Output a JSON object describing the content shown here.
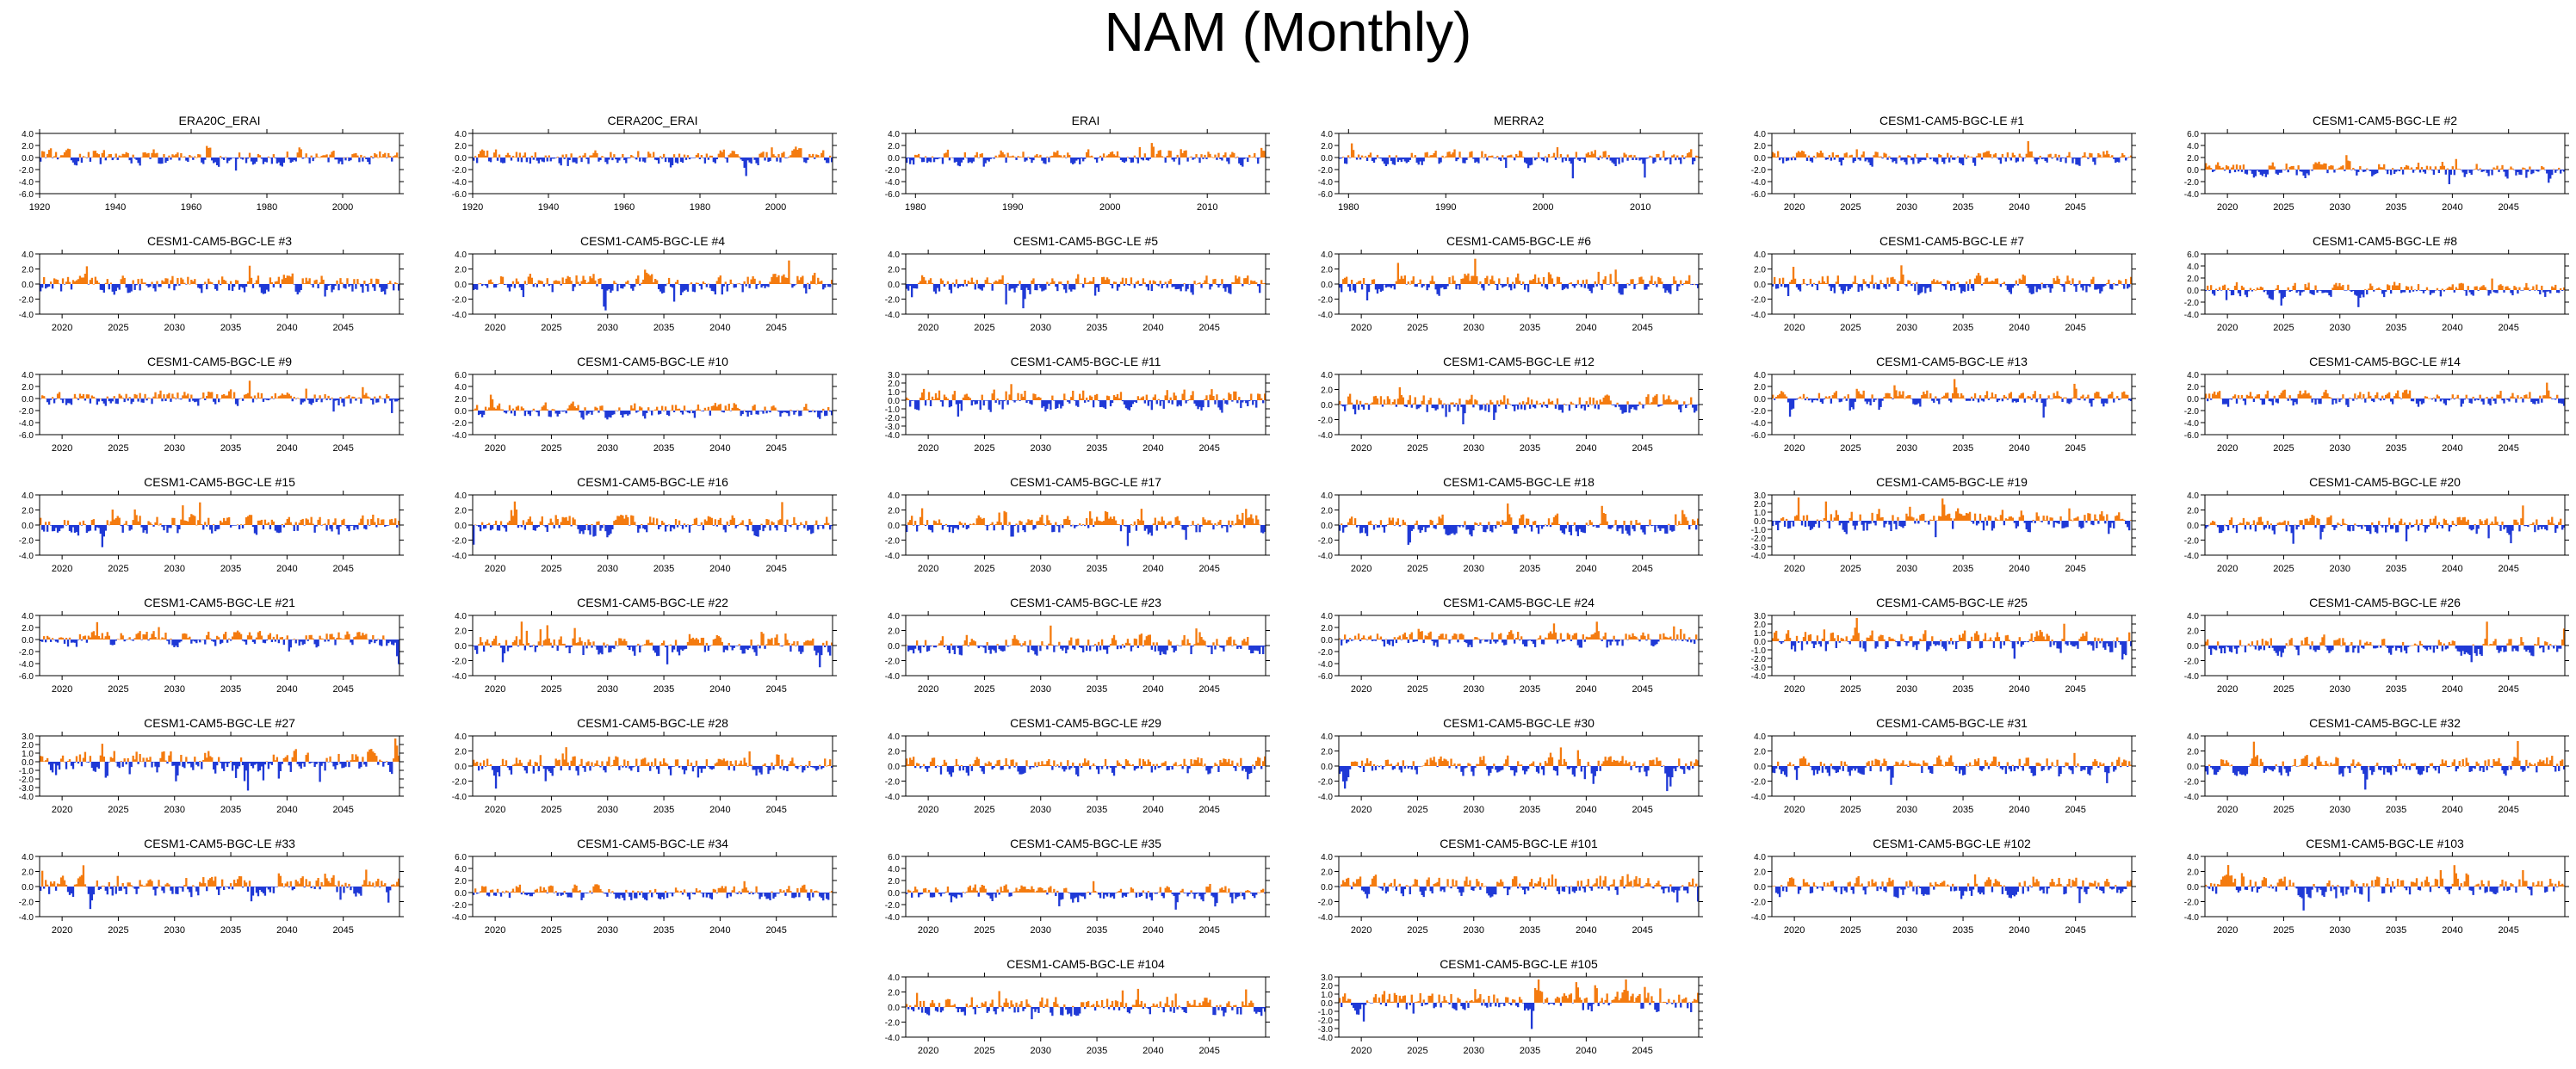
{
  "page": {
    "title": "NAM (Monthly)"
  },
  "colors": {
    "positive": "#f47b0f",
    "negative": "#1f39d6",
    "axis": "#000000"
  },
  "chart_data": [
    {
      "type": "bar",
      "title": "ERA20C_ERAI",
      "xticks": [
        "1920",
        "1940",
        "1960",
        "1980",
        "2000"
      ],
      "xlim": [
        1920,
        2015
      ],
      "yticks": [
        "4.0",
        "2.0",
        "0.0",
        "-2.0",
        "-4.0",
        "-6.0"
      ],
      "ylim": [
        -6,
        4
      ],
      "seed": 11
    },
    {
      "type": "bar",
      "title": "CERA20C_ERAI",
      "xticks": [
        "1920",
        "1940",
        "1960",
        "1980",
        "2000"
      ],
      "xlim": [
        1920,
        2015
      ],
      "yticks": [
        "4.0",
        "2.0",
        "0.0",
        "-2.0",
        "-4.0",
        "-6.0"
      ],
      "ylim": [
        -6,
        4
      ],
      "seed": 12
    },
    {
      "type": "bar",
      "title": "ERAI",
      "xticks": [
        "1980",
        "1990",
        "2000",
        "2010"
      ],
      "xlim": [
        1979,
        2016
      ],
      "yticks": [
        "4.0",
        "2.0",
        "0.0",
        "-2.0",
        "-4.0",
        "-6.0"
      ],
      "ylim": [
        -6,
        4
      ],
      "seed": 13
    },
    {
      "type": "bar",
      "title": "MERRA2",
      "xticks": [
        "1980",
        "1990",
        "2000",
        "2010"
      ],
      "xlim": [
        1979,
        2016
      ],
      "yticks": [
        "4.0",
        "2.0",
        "0.0",
        "-2.0",
        "-4.0",
        "-6.0"
      ],
      "ylim": [
        -6,
        4
      ],
      "seed": 14
    },
    {
      "type": "bar",
      "title": "CESM1-CAM5-BGC-LE #1",
      "xticks": [
        "2020",
        "2025",
        "2030",
        "2035",
        "2040",
        "2045"
      ],
      "xlim": [
        2018,
        2050
      ],
      "yticks": [
        "4.0",
        "2.0",
        "0.0",
        "-2.0",
        "-4.0",
        "-6.0"
      ],
      "ylim": [
        -6,
        4
      ],
      "seed": 21
    },
    {
      "type": "bar",
      "title": "CESM1-CAM5-BGC-LE #2",
      "xticks": [
        "2020",
        "2025",
        "2030",
        "2035",
        "2040",
        "2045"
      ],
      "xlim": [
        2018,
        2050
      ],
      "yticks": [
        "6.0",
        "4.0",
        "2.0",
        "0.0",
        "-2.0",
        "-4.0"
      ],
      "ylim": [
        -4,
        6
      ],
      "seed": 22
    },
    {
      "type": "bar",
      "title": "CESM1-CAM5-BGC-LE #3",
      "xticks": [
        "2020",
        "2025",
        "2030",
        "2035",
        "2040",
        "2045"
      ],
      "xlim": [
        2018,
        2050
      ],
      "yticks": [
        "4.0",
        "2.0",
        "0.0",
        "-2.0",
        "-4.0"
      ],
      "ylim": [
        -4,
        4
      ],
      "seed": 23
    },
    {
      "type": "bar",
      "title": "CESM1-CAM5-BGC-LE #4",
      "xticks": [
        "2020",
        "2025",
        "2030",
        "2035",
        "2040",
        "2045"
      ],
      "xlim": [
        2018,
        2050
      ],
      "yticks": [
        "4.0",
        "2.0",
        "0.0",
        "-2.0",
        "-4.0"
      ],
      "ylim": [
        -4,
        4
      ],
      "seed": 24
    },
    {
      "type": "bar",
      "title": "CESM1-CAM5-BGC-LE #5",
      "xticks": [
        "2020",
        "2025",
        "2030",
        "2035",
        "2040",
        "2045"
      ],
      "xlim": [
        2018,
        2050
      ],
      "yticks": [
        "4.0",
        "2.0",
        "0.0",
        "-2.0",
        "-4.0"
      ],
      "ylim": [
        -4,
        4
      ],
      "seed": 25
    },
    {
      "type": "bar",
      "title": "CESM1-CAM5-BGC-LE #6",
      "xticks": [
        "2020",
        "2025",
        "2030",
        "2035",
        "2040",
        "2045"
      ],
      "xlim": [
        2018,
        2050
      ],
      "yticks": [
        "4.0",
        "2.0",
        "0.0",
        "-2.0",
        "-4.0"
      ],
      "ylim": [
        -4,
        4
      ],
      "seed": 26
    },
    {
      "type": "bar",
      "title": "CESM1-CAM5-BGC-LE #7",
      "xticks": [
        "2020",
        "2025",
        "2030",
        "2035",
        "2040",
        "2045"
      ],
      "xlim": [
        2018,
        2050
      ],
      "yticks": [
        "4.0",
        "2.0",
        "0.0",
        "-2.0",
        "-4.0"
      ],
      "ylim": [
        -4,
        4
      ],
      "seed": 27
    },
    {
      "type": "bar",
      "title": "CESM1-CAM5-BGC-LE #8",
      "xticks": [
        "2020",
        "2025",
        "2030",
        "2035",
        "2040",
        "2045"
      ],
      "xlim": [
        2018,
        2050
      ],
      "yticks": [
        "6.0",
        "4.0",
        "2.0",
        "0.0",
        "-2.0",
        "-4.0"
      ],
      "ylim": [
        -4,
        6
      ],
      "seed": 28
    },
    {
      "type": "bar",
      "title": "CESM1-CAM5-BGC-LE #9",
      "xticks": [
        "2020",
        "2025",
        "2030",
        "2035",
        "2040",
        "2045"
      ],
      "xlim": [
        2018,
        2050
      ],
      "yticks": [
        "4.0",
        "2.0",
        "0.0",
        "-2.0",
        "-4.0",
        "-6.0"
      ],
      "ylim": [
        -6,
        4
      ],
      "seed": 29
    },
    {
      "type": "bar",
      "title": "CESM1-CAM5-BGC-LE #10",
      "xticks": [
        "2020",
        "2025",
        "2030",
        "2035",
        "2040",
        "2045"
      ],
      "xlim": [
        2018,
        2050
      ],
      "yticks": [
        "6.0",
        "4.0",
        "2.0",
        "0.0",
        "-2.0",
        "-4.0"
      ],
      "ylim": [
        -4,
        6
      ],
      "seed": 30
    },
    {
      "type": "bar",
      "title": "CESM1-CAM5-BGC-LE #11",
      "xticks": [
        "2020",
        "2025",
        "2030",
        "2035",
        "2040",
        "2045"
      ],
      "xlim": [
        2018,
        2050
      ],
      "yticks": [
        "3.0",
        "2.0",
        "1.0",
        "0.0",
        "-1.0",
        "-2.0",
        "-3.0",
        "-4.0"
      ],
      "ylim": [
        -4,
        3
      ],
      "seed": 31
    },
    {
      "type": "bar",
      "title": "CESM1-CAM5-BGC-LE #12",
      "xticks": [
        "2020",
        "2025",
        "2030",
        "2035",
        "2040",
        "2045"
      ],
      "xlim": [
        2018,
        2050
      ],
      "yticks": [
        "4.0",
        "2.0",
        "0.0",
        "-2.0",
        "-4.0"
      ],
      "ylim": [
        -4,
        4
      ],
      "seed": 32
    },
    {
      "type": "bar",
      "title": "CESM1-CAM5-BGC-LE #13",
      "xticks": [
        "2020",
        "2025",
        "2030",
        "2035",
        "2040",
        "2045"
      ],
      "xlim": [
        2018,
        2050
      ],
      "yticks": [
        "4.0",
        "2.0",
        "0.0",
        "-2.0",
        "-4.0",
        "-6.0"
      ],
      "ylim": [
        -6,
        4
      ],
      "seed": 33
    },
    {
      "type": "bar",
      "title": "CESM1-CAM5-BGC-LE #14",
      "xticks": [
        "2020",
        "2025",
        "2030",
        "2035",
        "2040",
        "2045"
      ],
      "xlim": [
        2018,
        2050
      ],
      "yticks": [
        "4.0",
        "2.0",
        "0.0",
        "-2.0",
        "-4.0",
        "-6.0"
      ],
      "ylim": [
        -6,
        4
      ],
      "seed": 34
    },
    {
      "type": "bar",
      "title": "CESM1-CAM5-BGC-LE #15",
      "xticks": [
        "2020",
        "2025",
        "2030",
        "2035",
        "2040",
        "2045"
      ],
      "xlim": [
        2018,
        2050
      ],
      "yticks": [
        "4.0",
        "2.0",
        "0.0",
        "-2.0",
        "-4.0"
      ],
      "ylim": [
        -4,
        4
      ],
      "seed": 35
    },
    {
      "type": "bar",
      "title": "CESM1-CAM5-BGC-LE #16",
      "xticks": [
        "2020",
        "2025",
        "2030",
        "2035",
        "2040",
        "2045"
      ],
      "xlim": [
        2018,
        2050
      ],
      "yticks": [
        "4.0",
        "2.0",
        "0.0",
        "-2.0",
        "-4.0"
      ],
      "ylim": [
        -4,
        4
      ],
      "seed": 36
    },
    {
      "type": "bar",
      "title": "CESM1-CAM5-BGC-LE #17",
      "xticks": [
        "2020",
        "2025",
        "2030",
        "2035",
        "2040",
        "2045"
      ],
      "xlim": [
        2018,
        2050
      ],
      "yticks": [
        "4.0",
        "2.0",
        "0.0",
        "-2.0",
        "-4.0"
      ],
      "ylim": [
        -4,
        4
      ],
      "seed": 37
    },
    {
      "type": "bar",
      "title": "CESM1-CAM5-BGC-LE #18",
      "xticks": [
        "2020",
        "2025",
        "2030",
        "2035",
        "2040",
        "2045"
      ],
      "xlim": [
        2018,
        2050
      ],
      "yticks": [
        "4.0",
        "2.0",
        "0.0",
        "-2.0",
        "-4.0"
      ],
      "ylim": [
        -4,
        4
      ],
      "seed": 38
    },
    {
      "type": "bar",
      "title": "CESM1-CAM5-BGC-LE #19",
      "xticks": [
        "2020",
        "2025",
        "2030",
        "2035",
        "2040",
        "2045"
      ],
      "xlim": [
        2018,
        2050
      ],
      "yticks": [
        "3.0",
        "2.0",
        "1.0",
        "0.0",
        "-1.0",
        "-2.0",
        "-3.0",
        "-4.0"
      ],
      "ylim": [
        -4,
        3
      ],
      "seed": 39
    },
    {
      "type": "bar",
      "title": "CESM1-CAM5-BGC-LE #20",
      "xticks": [
        "2020",
        "2025",
        "2030",
        "2035",
        "2040",
        "2045"
      ],
      "xlim": [
        2018,
        2050
      ],
      "yticks": [
        "4.0",
        "2.0",
        "0.0",
        "-2.0",
        "-4.0"
      ],
      "ylim": [
        -4,
        4
      ],
      "seed": 40
    },
    {
      "type": "bar",
      "title": "CESM1-CAM5-BGC-LE #21",
      "xticks": [
        "2020",
        "2025",
        "2030",
        "2035",
        "2040",
        "2045"
      ],
      "xlim": [
        2018,
        2050
      ],
      "yticks": [
        "4.0",
        "2.0",
        "0.0",
        "-2.0",
        "-4.0",
        "-6.0"
      ],
      "ylim": [
        -6,
        4
      ],
      "seed": 41
    },
    {
      "type": "bar",
      "title": "CESM1-CAM5-BGC-LE #22",
      "xticks": [
        "2020",
        "2025",
        "2030",
        "2035",
        "2040",
        "2045"
      ],
      "xlim": [
        2018,
        2050
      ],
      "yticks": [
        "4.0",
        "2.0",
        "0.0",
        "-2.0",
        "-4.0"
      ],
      "ylim": [
        -4,
        4
      ],
      "seed": 42
    },
    {
      "type": "bar",
      "title": "CESM1-CAM5-BGC-LE #23",
      "xticks": [
        "2020",
        "2025",
        "2030",
        "2035",
        "2040",
        "2045"
      ],
      "xlim": [
        2018,
        2050
      ],
      "yticks": [
        "4.0",
        "2.0",
        "0.0",
        "-2.0",
        "-4.0"
      ],
      "ylim": [
        -4,
        4
      ],
      "seed": 43
    },
    {
      "type": "bar",
      "title": "CESM1-CAM5-BGC-LE #24",
      "xticks": [
        "2020",
        "2025",
        "2030",
        "2035",
        "2040",
        "2045"
      ],
      "xlim": [
        2018,
        2050
      ],
      "yticks": [
        "4.0",
        "2.0",
        "0.0",
        "-2.0",
        "-4.0",
        "-6.0"
      ],
      "ylim": [
        -6,
        4
      ],
      "seed": 44
    },
    {
      "type": "bar",
      "title": "CESM1-CAM5-BGC-LE #25",
      "xticks": [
        "2020",
        "2025",
        "2030",
        "2035",
        "2040",
        "2045"
      ],
      "xlim": [
        2018,
        2050
      ],
      "yticks": [
        "3.0",
        "2.0",
        "1.0",
        "0.0",
        "-1.0",
        "-2.0",
        "-3.0",
        "-4.0"
      ],
      "ylim": [
        -4,
        3
      ],
      "seed": 45
    },
    {
      "type": "bar",
      "title": "CESM1-CAM5-BGC-LE #26",
      "xticks": [
        "2020",
        "2025",
        "2030",
        "2035",
        "2040",
        "2045"
      ],
      "xlim": [
        2018,
        2050
      ],
      "yticks": [
        "4.0",
        "2.0",
        "0.0",
        "-2.0",
        "-4.0"
      ],
      "ylim": [
        -4,
        4
      ],
      "seed": 46
    },
    {
      "type": "bar",
      "title": "CESM1-CAM5-BGC-LE #27",
      "xticks": [
        "2020",
        "2025",
        "2030",
        "2035",
        "2040",
        "2045"
      ],
      "xlim": [
        2018,
        2050
      ],
      "yticks": [
        "3.0",
        "2.0",
        "1.0",
        "0.0",
        "-1.0",
        "-2.0",
        "-3.0",
        "-4.0"
      ],
      "ylim": [
        -4,
        3
      ],
      "seed": 47
    },
    {
      "type": "bar",
      "title": "CESM1-CAM5-BGC-LE #28",
      "xticks": [
        "2020",
        "2025",
        "2030",
        "2035",
        "2040",
        "2045"
      ],
      "xlim": [
        2018,
        2050
      ],
      "yticks": [
        "4.0",
        "2.0",
        "0.0",
        "-2.0",
        "-4.0"
      ],
      "ylim": [
        -4,
        4
      ],
      "seed": 48
    },
    {
      "type": "bar",
      "title": "CESM1-CAM5-BGC-LE #29",
      "xticks": [
        "2020",
        "2025",
        "2030",
        "2035",
        "2040",
        "2045"
      ],
      "xlim": [
        2018,
        2050
      ],
      "yticks": [
        "4.0",
        "2.0",
        "0.0",
        "-2.0",
        "-4.0"
      ],
      "ylim": [
        -4,
        4
      ],
      "seed": 49
    },
    {
      "type": "bar",
      "title": "CESM1-CAM5-BGC-LE #30",
      "xticks": [
        "2020",
        "2025",
        "2030",
        "2035",
        "2040",
        "2045"
      ],
      "xlim": [
        2018,
        2050
      ],
      "yticks": [
        "4.0",
        "2.0",
        "0.0",
        "-2.0",
        "-4.0"
      ],
      "ylim": [
        -4,
        4
      ],
      "seed": 50
    },
    {
      "type": "bar",
      "title": "CESM1-CAM5-BGC-LE #31",
      "xticks": [
        "2020",
        "2025",
        "2030",
        "2035",
        "2040",
        "2045"
      ],
      "xlim": [
        2018,
        2050
      ],
      "yticks": [
        "4.0",
        "2.0",
        "0.0",
        "-2.0",
        "-4.0"
      ],
      "ylim": [
        -4,
        4
      ],
      "seed": 51
    },
    {
      "type": "bar",
      "title": "CESM1-CAM5-BGC-LE #32",
      "xticks": [
        "2020",
        "2025",
        "2030",
        "2035",
        "2040",
        "2045"
      ],
      "xlim": [
        2018,
        2050
      ],
      "yticks": [
        "4.0",
        "2.0",
        "0.0",
        "-2.0",
        "-4.0"
      ],
      "ylim": [
        -4,
        4
      ],
      "seed": 52
    },
    {
      "type": "bar",
      "title": "CESM1-CAM5-BGC-LE #33",
      "xticks": [
        "2020",
        "2025",
        "2030",
        "2035",
        "2040",
        "2045"
      ],
      "xlim": [
        2018,
        2050
      ],
      "yticks": [
        "4.0",
        "2.0",
        "0.0",
        "-2.0",
        "-4.0"
      ],
      "ylim": [
        -4,
        4
      ],
      "seed": 53
    },
    {
      "type": "bar",
      "title": "CESM1-CAM5-BGC-LE #34",
      "xticks": [
        "2020",
        "2025",
        "2030",
        "2035",
        "2040",
        "2045"
      ],
      "xlim": [
        2018,
        2050
      ],
      "yticks": [
        "6.0",
        "4.0",
        "2.0",
        "0.0",
        "-2.0",
        "-4.0"
      ],
      "ylim": [
        -4,
        6
      ],
      "seed": 54
    },
    {
      "type": "bar",
      "title": "CESM1-CAM5-BGC-LE #35",
      "xticks": [
        "2020",
        "2025",
        "2030",
        "2035",
        "2040",
        "2045"
      ],
      "xlim": [
        2018,
        2050
      ],
      "yticks": [
        "6.0",
        "4.0",
        "2.0",
        "0.0",
        "-2.0",
        "-4.0"
      ],
      "ylim": [
        -4,
        6
      ],
      "seed": 55
    },
    {
      "type": "bar",
      "title": "CESM1-CAM5-BGC-LE #101",
      "xticks": [
        "2020",
        "2025",
        "2030",
        "2035",
        "2040",
        "2045"
      ],
      "xlim": [
        2018,
        2050
      ],
      "yticks": [
        "4.0",
        "2.0",
        "0.0",
        "-2.0",
        "-4.0"
      ],
      "ylim": [
        -4,
        4
      ],
      "seed": 56
    },
    {
      "type": "bar",
      "title": "CESM1-CAM5-BGC-LE #102",
      "xticks": [
        "2020",
        "2025",
        "2030",
        "2035",
        "2040",
        "2045"
      ],
      "xlim": [
        2018,
        2050
      ],
      "yticks": [
        "4.0",
        "2.0",
        "0.0",
        "-2.0",
        "-4.0"
      ],
      "ylim": [
        -4,
        4
      ],
      "seed": 57
    },
    {
      "type": "bar",
      "title": "CESM1-CAM5-BGC-LE #103",
      "xticks": [
        "2020",
        "2025",
        "2030",
        "2035",
        "2040",
        "2045"
      ],
      "xlim": [
        2018,
        2050
      ],
      "yticks": [
        "4.0",
        "2.0",
        "0.0",
        "-2.0",
        "-4.0"
      ],
      "ylim": [
        -4,
        4
      ],
      "seed": 58
    },
    {
      "type": "bar",
      "title": "CESM1-CAM5-BGC-LE #104",
      "xticks": [
        "2020",
        "2025",
        "2030",
        "2035",
        "2040",
        "2045"
      ],
      "xlim": [
        2018,
        2050
      ],
      "yticks": [
        "4.0",
        "2.0",
        "0.0",
        "-2.0",
        "-4.0"
      ],
      "ylim": [
        -4,
        4
      ],
      "seed": 59
    },
    {
      "type": "bar",
      "title": "CESM1-CAM5-BGC-LE #105",
      "xticks": [
        "2020",
        "2025",
        "2030",
        "2035",
        "2040",
        "2045"
      ],
      "xlim": [
        2018,
        2050
      ],
      "yticks": [
        "3.0",
        "2.0",
        "1.0",
        "0.0",
        "-1.0",
        "-2.0",
        "-3.0",
        "-4.0"
      ],
      "ylim": [
        -4,
        3
      ],
      "seed": 60
    }
  ]
}
